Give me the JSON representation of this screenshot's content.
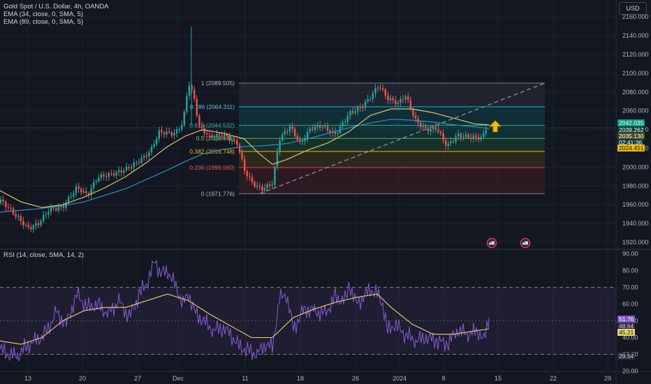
{
  "header": {
    "title": "Gold Spot / U.S. Dollar, 4h, OANDA",
    "ema34": "EMA (34, close, 0, SMA, 5)",
    "ema89": "EMA (89, close, 0, SMA, 5)",
    "currency": "USD",
    "rsi_title": "RSI (14, close, SMA, 14, 2)"
  },
  "colors": {
    "background": "#131722",
    "up": "#26a69a",
    "down": "#ef5350",
    "ema34": "#d6c372",
    "ema89": "#2f8fc4",
    "rsi": "#7e57c2",
    "rsi_ma": "#e6d66a",
    "price_tag": "#089981",
    "fib_tag": "#f0b90b"
  },
  "price_labels": {
    "last_price": "2042.035",
    "price2": "2039.262",
    "price3": "2035.130",
    "countdown": "02:41:36",
    "fib_price": "2024.451"
  },
  "rsi_labels": {
    "rsi_value": "51.76",
    "val2": "48.64",
    "val3": "45.21",
    "low": "29.54"
  },
  "chart_data": [
    {
      "type": "candlestick",
      "title": "Gold Spot / U.S. Dollar, 4h, OANDA",
      "x_ticks": [
        "13",
        "20",
        "27",
        "Dec",
        "11",
        "18",
        "26",
        "2024",
        "8",
        "15",
        "22",
        "29"
      ],
      "y_ticks": [
        "1920.000",
        "1940.000",
        "1960.000",
        "1980.000",
        "2000.000",
        "2020.000",
        "2040.000",
        "2060.000",
        "2080.000",
        "2100.000",
        "2120.000",
        "2140.000",
        "2160.000"
      ],
      "ylim": [
        1910,
        2170
      ],
      "series": [
        {
          "name": "EMA (34, close, 0, SMA, 5)",
          "x": [
            0,
            30,
            60,
            90,
            120,
            150,
            180,
            210,
            240,
            265,
            290,
            320,
            350,
            370,
            390,
            410,
            440,
            470,
            500,
            530,
            560,
            590,
            620,
            650,
            680,
            700
          ],
          "values": [
            1975,
            1963,
            1957,
            1960,
            1968,
            1978,
            1990,
            2005,
            2022,
            2033,
            2040,
            2036,
            2030,
            2015,
            2003,
            2008,
            2018,
            2026,
            2038,
            2055,
            2062,
            2062,
            2058,
            2052,
            2046,
            2045
          ]
        },
        {
          "name": "EMA (89, close, 0, SMA, 5)",
          "x": [
            0,
            30,
            60,
            90,
            120,
            150,
            180,
            210,
            240,
            265,
            290,
            320,
            350,
            380,
            410,
            440,
            470,
            500,
            530,
            560,
            590,
            620,
            650,
            680,
            700
          ],
          "values": [
            1952,
            1954,
            1956,
            1959,
            1963,
            1970,
            1977,
            1987,
            1997,
            2006,
            2014,
            2019,
            2022,
            2023,
            2025,
            2030,
            2036,
            2042,
            2047,
            2051,
            2050,
            2048,
            2045,
            2043,
            2041
          ]
        }
      ]
    },
    {
      "type": "fibonacci",
      "levels": [
        {
          "label": "1 (2089.505)",
          "price": 2089.505
        },
        {
          "label": "0.786 (2064.311)",
          "price": 2064.311
        },
        {
          "label": "0.618 (2044.532)",
          "price": 2044.532
        },
        {
          "label": "0.5 (2030.641)",
          "price": 2030.641
        },
        {
          "label": "0.382 (2016.748)",
          "price": 2016.748
        },
        {
          "label": "0.236 (1999.560)",
          "price": 1999.56
        },
        {
          "label": "0 (1971.776)",
          "price": 1971.776
        }
      ]
    },
    {
      "type": "line",
      "title": "RSI (14, close, SMA, 14, 2)",
      "y_ticks": [
        "20.00",
        "30.00",
        "40.00",
        "50.00",
        "60.00",
        "70.00",
        "80.00",
        "90.00"
      ],
      "ylim": [
        18,
        93
      ],
      "band": [
        30,
        70
      ],
      "midline": 50,
      "series": [
        {
          "name": "RSI",
          "x": [
            0,
            12,
            25,
            38,
            50,
            65,
            80,
            95,
            110,
            125,
            140,
            155,
            170,
            185,
            200,
            212,
            222,
            230,
            240,
            252,
            262,
            270,
            280,
            292,
            305,
            318,
            330,
            342,
            355,
            368,
            380,
            390,
            400,
            410,
            420,
            435,
            450,
            465,
            480,
            495,
            500,
            510,
            520,
            530,
            540,
            548,
            555,
            565,
            580,
            595,
            610,
            625,
            640,
            655,
            670,
            685,
            693,
            700
          ],
          "values": [
            33,
            30,
            29,
            35,
            38,
            42,
            55,
            48,
            66,
            58,
            60,
            54,
            62,
            52,
            66,
            74,
            86,
            78,
            80,
            70,
            60,
            66,
            54,
            50,
            44,
            46,
            42,
            35,
            32,
            30,
            36,
            34,
            63,
            66,
            45,
            57,
            56,
            54,
            64,
            62,
            72,
            60,
            64,
            69,
            66,
            60,
            44,
            48,
            42,
            38,
            40,
            38,
            36,
            44,
            42,
            44,
            38,
            51.76
          ]
        },
        {
          "name": "RSI-based MA",
          "x": [
            0,
            30,
            60,
            90,
            120,
            150,
            180,
            210,
            240,
            270,
            300,
            330,
            360,
            390,
            420,
            450,
            480,
            510,
            540,
            560,
            590,
            620,
            650,
            680,
            700
          ],
          "values": [
            38,
            36,
            40,
            50,
            56,
            58,
            58,
            62,
            66,
            62,
            54,
            47,
            40,
            40,
            52,
            57,
            61,
            64,
            66,
            58,
            48,
            42,
            42,
            44,
            45.21
          ]
        }
      ]
    }
  ]
}
